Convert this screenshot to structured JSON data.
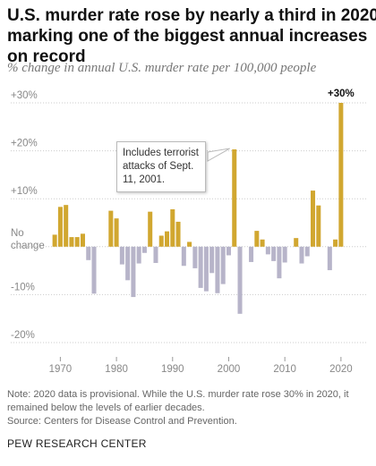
{
  "chart_data": {
    "type": "bar",
    "title": "U.S. murder rate rose by nearly a third in 2020, marking one of the biggest annual increases on record",
    "subtitle": "% change in annual U.S. murder rate per 100,000 people",
    "x": [
      1969,
      1970,
      1971,
      1972,
      1973,
      1974,
      1975,
      1976,
      1977,
      1978,
      1979,
      1980,
      1981,
      1982,
      1983,
      1984,
      1985,
      1986,
      1987,
      1988,
      1989,
      1990,
      1991,
      1992,
      1993,
      1994,
      1995,
      1996,
      1997,
      1998,
      1999,
      2000,
      2001,
      2002,
      2003,
      2004,
      2005,
      2006,
      2007,
      2008,
      2009,
      2010,
      2011,
      2012,
      2013,
      2014,
      2015,
      2016,
      2017,
      2018,
      2019,
      2020
    ],
    "values": [
      2.5,
      8.3,
      8.7,
      2,
      2,
      2.7,
      -2.8,
      -9.8,
      0,
      0,
      7.5,
      5.9,
      -3.7,
      -7,
      -10.5,
      -3.5,
      -1.3,
      7.3,
      -3.4,
      2.3,
      3.2,
      7.8,
      5.2,
      -4,
      1,
      -4.5,
      -8.6,
      -9.3,
      -5.5,
      -9.7,
      -7.8,
      -1.8,
      20.3,
      -14,
      0,
      -3.2,
      3.3,
      1.5,
      -1.6,
      -3,
      -6.6,
      -3.3,
      0,
      1.8,
      -3.5,
      -2,
      11.7,
      8.6,
      0,
      -4.9,
      1.5,
      30
    ],
    "value_labels": [
      null,
      null,
      null,
      null,
      null,
      null,
      null,
      null,
      null,
      null,
      null,
      null,
      null,
      null,
      null,
      null,
      null,
      null,
      null,
      null,
      null,
      null,
      null,
      null,
      null,
      null,
      null,
      null,
      null,
      null,
      null,
      null,
      null,
      null,
      null,
      null,
      null,
      null,
      null,
      null,
      null,
      null,
      null,
      null,
      null,
      null,
      null,
      null,
      null,
      null,
      null,
      "+30%"
    ],
    "positive_color": "#d1a730",
    "negative_color": "#b7b4c9",
    "xlim": [
      1968.5,
      2020.5
    ],
    "xticks": [
      1970,
      1980,
      1990,
      2000,
      2010,
      2020
    ],
    "ylim": [
      -20,
      30
    ],
    "yticks": [
      {
        "value": 30,
        "label": "+30%"
      },
      {
        "value": 20,
        "label": "+20%"
      },
      {
        "value": 10,
        "label": "+10%"
      },
      {
        "value": 0,
        "label": "No change"
      },
      {
        "value": -10,
        "label": "-10%"
      },
      {
        "value": -20,
        "label": "-20%"
      }
    ],
    "grid": true,
    "annotations": [
      {
        "text": "Includes terrorist attacks of Sept. 11, 2001.",
        "x": 2001
      }
    ]
  },
  "notes": [
    "Note: 2020 data is provisional. While the U.S. murder rate rose 30% in 2020, it remained below the levels of earlier decades.",
    "Source: Centers for Disease Control and Prevention."
  ],
  "credit": "PEW RESEARCH CENTER"
}
